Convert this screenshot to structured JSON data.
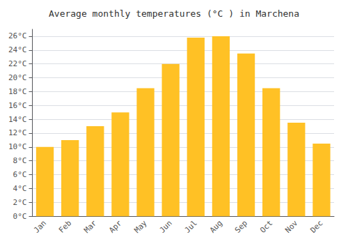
{
  "chart_data": {
    "type": "bar",
    "title": "Average monthly temperatures (°C ) in Marchena",
    "categories": [
      "Jan",
      "Feb",
      "Mar",
      "Apr",
      "May",
      "Jun",
      "Jul",
      "Aug",
      "Sep",
      "Oct",
      "Nov",
      "Dec"
    ],
    "values": [
      10.0,
      11.0,
      13.0,
      15.0,
      18.5,
      22.0,
      25.8,
      26.0,
      23.5,
      18.5,
      13.5,
      10.5
    ],
    "color": "#FFC125",
    "ylim": [
      0,
      27
    ],
    "yticks": [
      {
        "value": 0,
        "label": "0°C"
      },
      {
        "value": 2,
        "label": "2°C"
      },
      {
        "value": 4,
        "label": "4°C"
      },
      {
        "value": 6,
        "label": "6°C"
      },
      {
        "value": 8,
        "label": "8°C"
      },
      {
        "value": 10,
        "label": "10°C"
      },
      {
        "value": 12,
        "label": "12°C"
      },
      {
        "value": 14,
        "label": "14°C"
      },
      {
        "value": 16,
        "label": "16°C"
      },
      {
        "value": 18,
        "label": "18°C"
      },
      {
        "value": 20,
        "label": "20°C"
      },
      {
        "value": 22,
        "label": "22°C"
      },
      {
        "value": 24,
        "label": "24°C"
      },
      {
        "value": 26,
        "label": "26°C"
      }
    ],
    "grid": true
  }
}
